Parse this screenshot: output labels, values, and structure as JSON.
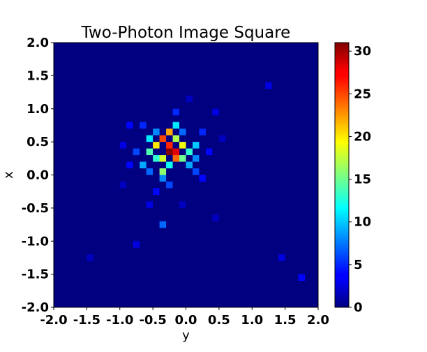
{
  "chart_data": {
    "type": "heatmap",
    "title": "Two-Photon Image Square",
    "xlabel": "y",
    "ylabel": "x",
    "xlim": [
      -2.0,
      2.0
    ],
    "ylim": [
      -2.0,
      2.0
    ],
    "x_ticks": [
      "-2.0",
      "-1.5",
      "-1.0",
      "-0.5",
      "0.0",
      "0.5",
      "1.0",
      "1.5",
      "2.0"
    ],
    "y_ticks": [
      "2.0",
      "1.5",
      "1.0",
      "0.5",
      "0.0",
      "-0.5",
      "-1.0",
      "-1.5",
      "-2.0"
    ],
    "bins": 40,
    "colormap": "jet",
    "colorbar": {
      "vmin": 0,
      "vmax": 31,
      "ticks": [
        "30",
        "25",
        "20",
        "15",
        "10",
        "5",
        "0"
      ]
    },
    "grid": false,
    "hotspots": [
      {
        "x": -0.3,
        "y": 0.35,
        "value": 31
      },
      {
        "x": -0.2,
        "y": 0.35,
        "value": 28
      },
      {
        "x": -0.3,
        "y": 0.45,
        "value": 26
      },
      {
        "x": -0.4,
        "y": 0.55,
        "value": 25
      },
      {
        "x": -0.2,
        "y": 0.25,
        "value": 24
      },
      {
        "x": -0.3,
        "y": 0.65,
        "value": 22
      },
      {
        "x": -0.5,
        "y": 0.45,
        "value": 20
      },
      {
        "x": -0.1,
        "y": 0.45,
        "value": 19
      },
      {
        "x": -0.4,
        "y": 0.25,
        "value": 18
      },
      {
        "x": -0.2,
        "y": 0.55,
        "value": 17
      },
      {
        "x": -0.4,
        "y": 0.05,
        "value": 16
      },
      {
        "x": -0.1,
        "y": 0.25,
        "value": 15
      },
      {
        "x": -0.6,
        "y": 0.35,
        "value": 14
      },
      {
        "x": -0.5,
        "y": 0.25,
        "value": 13
      },
      {
        "x": 0.0,
        "y": 0.35,
        "value": 13
      },
      {
        "x": -0.3,
        "y": 0.15,
        "value": 12
      },
      {
        "x": -0.2,
        "y": 0.75,
        "value": 11
      },
      {
        "x": -0.6,
        "y": 0.55,
        "value": 11
      },
      {
        "x": 0.1,
        "y": 0.45,
        "value": 10
      },
      {
        "x": -0.7,
        "y": 0.15,
        "value": 9
      },
      {
        "x": 0.0,
        "y": 0.15,
        "value": 9
      },
      {
        "x": -0.4,
        "y": -0.05,
        "value": 8
      },
      {
        "x": -0.6,
        "y": 0.05,
        "value": 7
      },
      {
        "x": 0.1,
        "y": 0.25,
        "value": 8
      },
      {
        "x": -0.5,
        "y": 0.65,
        "value": 8
      },
      {
        "x": -0.1,
        "y": 0.65,
        "value": 7
      },
      {
        "x": -0.8,
        "y": 0.35,
        "value": 6
      },
      {
        "x": -0.3,
        "y": -0.15,
        "value": 6
      },
      {
        "x": 0.1,
        "y": 0.05,
        "value": 6
      },
      {
        "x": -0.2,
        "y": 0.95,
        "value": 5
      },
      {
        "x": -0.7,
        "y": 0.75,
        "value": 5
      },
      {
        "x": 0.2,
        "y": 0.65,
        "value": 5
      },
      {
        "x": -0.9,
        "y": 0.15,
        "value": 4
      },
      {
        "x": -0.5,
        "y": -0.25,
        "value": 4
      },
      {
        "x": -0.4,
        "y": -0.75,
        "value": 7
      },
      {
        "x": -0.9,
        "y": 0.75,
        "value": 4
      },
      {
        "x": 0.3,
        "y": 0.35,
        "value": 4
      },
      {
        "x": 0.4,
        "y": 0.95,
        "value": 3
      },
      {
        "x": -1.0,
        "y": 0.45,
        "value": 3
      },
      {
        "x": -0.6,
        "y": -0.45,
        "value": 3
      },
      {
        "x": 0.2,
        "y": -0.05,
        "value": 4
      },
      {
        "x": -0.8,
        "y": -1.05,
        "value": 3
      },
      {
        "x": 1.7,
        "y": -1.55,
        "value": 4
      },
      {
        "x": 1.2,
        "y": 1.35,
        "value": 3
      },
      {
        "x": 1.4,
        "y": -1.25,
        "value": 3
      },
      {
        "x": 0.5,
        "y": 0.55,
        "value": 2
      },
      {
        "x": -1.5,
        "y": -1.25,
        "value": 2
      },
      {
        "x": 0.4,
        "y": -0.65,
        "value": 2
      },
      {
        "x": -0.1,
        "y": -0.45,
        "value": 2
      },
      {
        "x": -1.0,
        "y": -0.15,
        "value": 2
      },
      {
        "x": 0.0,
        "y": 1.15,
        "value": 2
      }
    ]
  }
}
